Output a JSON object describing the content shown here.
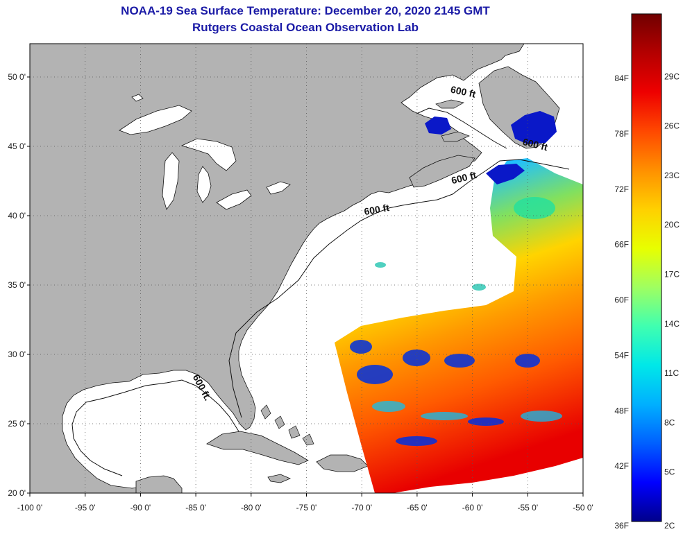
{
  "title_line1": "NOAA-19 Sea Surface Temperature:  December 20, 2020 2145 GMT",
  "title_line2": "Rutgers Coastal Ocean Observation Lab",
  "x_ticks": [
    {
      "lon": -100,
      "label": "-100 0'"
    },
    {
      "lon": -95,
      "label": "-95 0'"
    },
    {
      "lon": -90,
      "label": "-90 0'"
    },
    {
      "lon": -85,
      "label": "-85 0'"
    },
    {
      "lon": -80,
      "label": "-80 0'"
    },
    {
      "lon": -75,
      "label": "-75 0'"
    },
    {
      "lon": -70,
      "label": "-70 0'"
    },
    {
      "lon": -65,
      "label": "-65 0'"
    },
    {
      "lon": -60,
      "label": "-60 0'"
    },
    {
      "lon": -55,
      "label": "-55 0'"
    },
    {
      "lon": -50,
      "label": "-50 0'"
    }
  ],
  "y_ticks": [
    {
      "lat": 50,
      "label": "50 0'"
    },
    {
      "lat": 45,
      "label": "45 0'"
    },
    {
      "lat": 40,
      "label": "40 0'"
    },
    {
      "lat": 35,
      "label": "35 0'"
    },
    {
      "lat": 30,
      "label": "30 0'"
    },
    {
      "lat": 25,
      "label": "25 0'"
    },
    {
      "lat": 20,
      "label": "20 0'"
    }
  ],
  "contour_labels": [
    {
      "text": "600 ft",
      "lon": -60.9,
      "lat": 48.7,
      "angle": 12
    },
    {
      "text": "600 ft",
      "lon": -54.4,
      "lat": 44.9,
      "angle": 14
    },
    {
      "text": "600 ft",
      "lon": -60.7,
      "lat": 42.5,
      "angle": -14
    },
    {
      "text": "600 ft",
      "lon": -68.6,
      "lat": 40.2,
      "angle": -10
    },
    {
      "text": "600 ft.",
      "lon": -84.7,
      "lat": 27.5,
      "angle": 62
    }
  ],
  "colorbar": {
    "f_labels": [
      "84F",
      "78F",
      "72F",
      "66F",
      "60F",
      "54F",
      "48F",
      "42F",
      "36F"
    ],
    "c_labels": [
      "29C",
      "26C",
      "23C",
      "20C",
      "17C",
      "14C",
      "11C",
      "8C",
      "5C",
      "2C"
    ],
    "colors": [
      "#00008b",
      "#0000ff",
      "#0060ff",
      "#00b0ff",
      "#00e8e8",
      "#40ffb0",
      "#a0ff60",
      "#e8ff00",
      "#ffd000",
      "#ff9000",
      "#ff4800",
      "#ee0000",
      "#b40000",
      "#700000"
    ]
  },
  "colors": {
    "land": "#b3b3b3",
    "ocean": "#ffffff",
    "title": "#1a1aa6"
  }
}
